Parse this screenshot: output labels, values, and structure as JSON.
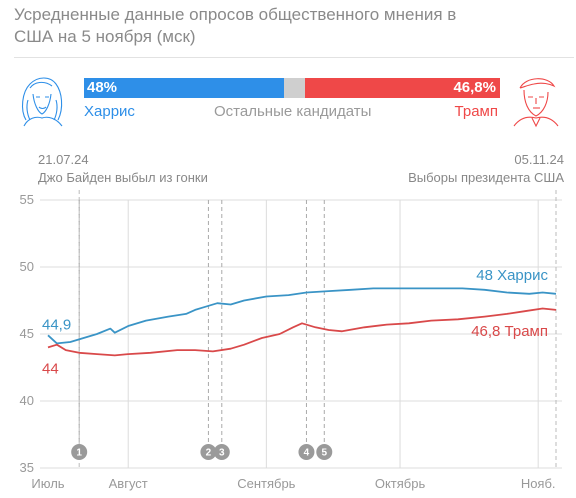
{
  "header": {
    "title": "Усредненные данные опросов общественного мнения в США на 5 ноября (мск)"
  },
  "summary": {
    "harris_value": "48%",
    "harris_share": 48,
    "other_share": 5.2,
    "trump_value": "46,8%",
    "trump_share": 46.8,
    "harris_label": "Харрис",
    "other_label": "Остальные кандидаты",
    "trump_label": "Трамп"
  },
  "events": {
    "left_date": "21.07.24",
    "left_text": "Джо Байден выбыл из гонки",
    "right_date": "05.11.24",
    "right_text": "Выборы президента США"
  },
  "colors": {
    "harris_bar": "#2e8fe8",
    "harris_line": "#3a94c6",
    "trump": "#ef4848",
    "trump_line": "#d9494a",
    "other": "#cfcfcf",
    "grid": "#dcdcdc",
    "marker": "#9a9a9a"
  },
  "chart_data": {
    "type": "line",
    "x_range": [
      "2024-07-14",
      "2024-11-05"
    ],
    "ylim": [
      35,
      55
    ],
    "y_ticks": [
      "55",
      "50",
      "45",
      "40",
      "35"
    ],
    "x_tick_labels": [
      {
        "date": "2024-07-14",
        "label": "Июль"
      },
      {
        "date": "2024-08-01",
        "label": "Август"
      },
      {
        "date": "2024-09-01",
        "label": "Сентябрь"
      },
      {
        "date": "2024-10-01",
        "label": "Октябрь"
      },
      {
        "date": "2024-11-01",
        "label": "Нояб."
      }
    ],
    "series": [
      {
        "key": "harris",
        "end_label": "48 Харрис",
        "start_label": "44,9",
        "points": [
          [
            "2024-07-14",
            44.9
          ],
          [
            "2024-07-16",
            44.3
          ],
          [
            "2024-07-19",
            44.4
          ],
          [
            "2024-07-22",
            44.7
          ],
          [
            "2024-07-25",
            45.0
          ],
          [
            "2024-07-28",
            45.4
          ],
          [
            "2024-07-29",
            45.1
          ],
          [
            "2024-08-01",
            45.6
          ],
          [
            "2024-08-05",
            46.0
          ],
          [
            "2024-08-10",
            46.3
          ],
          [
            "2024-08-14",
            46.5
          ],
          [
            "2024-08-16",
            46.8
          ],
          [
            "2024-08-18",
            47.0
          ],
          [
            "2024-08-21",
            47.3
          ],
          [
            "2024-08-24",
            47.2
          ],
          [
            "2024-08-27",
            47.5
          ],
          [
            "2024-09-01",
            47.8
          ],
          [
            "2024-09-06",
            47.9
          ],
          [
            "2024-09-10",
            48.1
          ],
          [
            "2024-09-15",
            48.2
          ],
          [
            "2024-09-20",
            48.3
          ],
          [
            "2024-09-25",
            48.4
          ],
          [
            "2024-10-01",
            48.4
          ],
          [
            "2024-10-08",
            48.4
          ],
          [
            "2024-10-15",
            48.4
          ],
          [
            "2024-10-20",
            48.3
          ],
          [
            "2024-10-25",
            48.1
          ],
          [
            "2024-10-30",
            48.0
          ],
          [
            "2024-11-02",
            48.1
          ],
          [
            "2024-11-05",
            48.0
          ]
        ]
      },
      {
        "key": "trump",
        "end_label": "46,8 Трамп",
        "start_label": "44",
        "points": [
          [
            "2024-07-14",
            44.0
          ],
          [
            "2024-07-16",
            44.2
          ],
          [
            "2024-07-18",
            43.8
          ],
          [
            "2024-07-21",
            43.6
          ],
          [
            "2024-07-25",
            43.5
          ],
          [
            "2024-07-29",
            43.4
          ],
          [
            "2024-08-01",
            43.5
          ],
          [
            "2024-08-06",
            43.6
          ],
          [
            "2024-08-12",
            43.8
          ],
          [
            "2024-08-16",
            43.8
          ],
          [
            "2024-08-20",
            43.7
          ],
          [
            "2024-08-24",
            43.9
          ],
          [
            "2024-08-27",
            44.2
          ],
          [
            "2024-08-31",
            44.7
          ],
          [
            "2024-09-04",
            45.0
          ],
          [
            "2024-09-07",
            45.5
          ],
          [
            "2024-09-09",
            45.8
          ],
          [
            "2024-09-12",
            45.5
          ],
          [
            "2024-09-15",
            45.3
          ],
          [
            "2024-09-18",
            45.2
          ],
          [
            "2024-09-23",
            45.5
          ],
          [
            "2024-09-28",
            45.7
          ],
          [
            "2024-10-03",
            45.8
          ],
          [
            "2024-10-08",
            46.0
          ],
          [
            "2024-10-14",
            46.1
          ],
          [
            "2024-10-20",
            46.3
          ],
          [
            "2024-10-25",
            46.5
          ],
          [
            "2024-10-29",
            46.7
          ],
          [
            "2024-11-02",
            46.9
          ],
          [
            "2024-11-05",
            46.8
          ]
        ]
      }
    ],
    "markers": [
      {
        "label": "1",
        "date": "2024-07-21"
      },
      {
        "label": "2",
        "date": "2024-08-19"
      },
      {
        "label": "3",
        "date": "2024-08-22"
      },
      {
        "label": "4",
        "date": "2024-09-10"
      },
      {
        "label": "5",
        "date": "2024-09-14"
      }
    ]
  }
}
